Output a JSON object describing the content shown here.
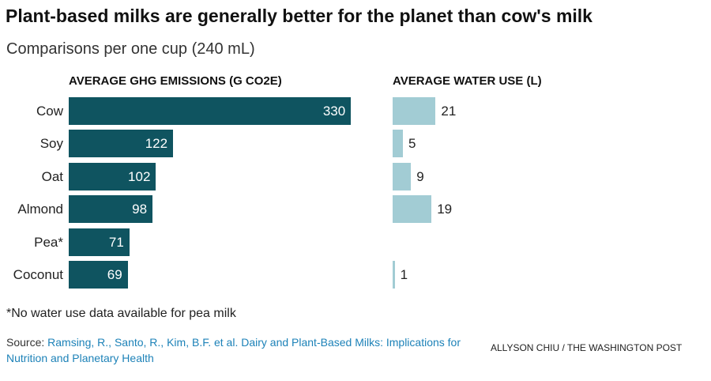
{
  "title": "Plant-based milks are generally better for the planet than cow's milk",
  "subtitle": "Comparisons per one cup (240 mL)",
  "footnote": "*No water use data available for pea milk",
  "source": {
    "label": "Source:",
    "text": "Ramsing, R., Santo, R., Kim, B.F. et al. Dairy and Plant-Based Milks: Implications for Nutrition and Planetary Health"
  },
  "credit": "ALLYSON CHIU / THE WASHINGTON POST",
  "colors": {
    "ghg_bar": "#0f5460",
    "water_bar": "#a2ccd4",
    "source_link": "#1d82b8"
  },
  "chart_data": [
    {
      "type": "bar",
      "orientation": "horizontal",
      "title": "AVERAGE GHG EMISSIONS (G CO2E)",
      "categories": [
        "Cow",
        "Soy",
        "Oat",
        "Almond",
        "Pea*",
        "Coconut"
      ],
      "values": [
        330,
        122,
        102,
        98,
        71,
        69
      ],
      "xlim": [
        0,
        400
      ],
      "grid": false,
      "data_labels": "inside-end"
    },
    {
      "type": "bar",
      "orientation": "horizontal",
      "title": "AVERAGE WATER USE (L)",
      "categories": [
        "Cow",
        "Soy",
        "Oat",
        "Almond",
        "Pea*",
        "Coconut"
      ],
      "values": [
        21,
        5,
        9,
        19,
        null,
        1
      ],
      "xlim": [
        0,
        90
      ],
      "grid": false,
      "data_labels": "outside-end"
    }
  ]
}
